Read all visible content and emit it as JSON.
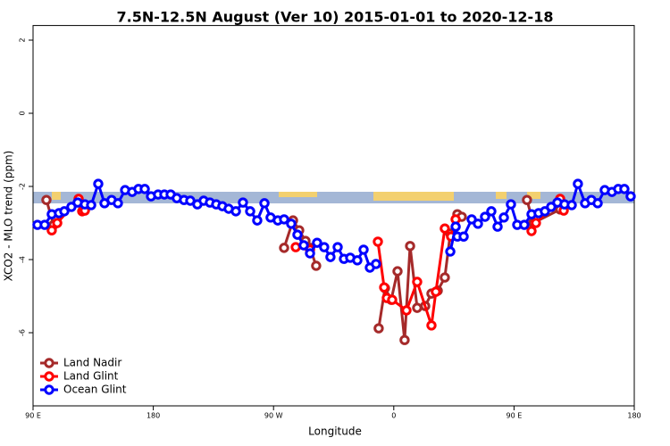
{
  "chart_data": {
    "type": "line",
    "title": "7.5N-12.5N August (Ver 10)   2015-01-01 to 2020-12-18",
    "x_label": "Longitude",
    "y_label": "XCO2 - MLO trend (ppm)",
    "xlim": [
      90,
      540
    ],
    "ylim": [
      -8,
      2.4
    ],
    "xticks": [
      {
        "value": 90,
        "label": "90 E"
      },
      {
        "value": 180,
        "label": "180"
      },
      {
        "value": 270,
        "label": "90 W"
      },
      {
        "value": 360,
        "label": "0"
      },
      {
        "value": 450,
        "label": "90 E"
      },
      {
        "value": 540,
        "label": "180"
      }
    ],
    "yticks": [
      -6,
      -4,
      -2,
      0,
      2
    ],
    "legend": "bottom-left",
    "series": [
      {
        "name": "Land Nadir",
        "color": "#a52a2a",
        "x": [
          100.0,
          105.4,
          null,
          277.9,
          284.6,
          289.2,
          293.9,
          297.3,
          301.9,
          null,
          348.7,
          353.4,
          358.1,
          362.8,
          368.1,
          372.2,
          377.5,
          383.5,
          388.2,
          392.9,
          398.2,
          402.3,
          407.6,
          410.9,
          null,
          459.7,
          464.4,
          484.5
        ],
        "values": [
          -2.37,
          -3.05,
          null,
          -3.68,
          -2.93,
          -3.2,
          -3.49,
          -3.68,
          -4.17,
          null,
          -5.88,
          -4.78,
          -5.1,
          -4.32,
          -6.2,
          -3.63,
          -5.32,
          -5.27,
          -4.93,
          -4.85,
          -4.49,
          -3.29,
          -2.76,
          -2.83,
          null,
          -2.37,
          -3.0,
          -2.63
        ]
      },
      {
        "name": "Land Glint",
        "color": "#ff0000",
        "x": [
          104.0,
          108.1,
          124.1,
          126.8,
          128.8,
          null,
          286.6,
          297.3,
          null,
          348.1,
          352.8,
          354.8,
          358.8,
          369.5,
          377.5,
          388.2,
          391.5,
          398.2,
          402.9,
          406.3,
          null,
          463.1,
          466.4,
          484.5,
          487.2
        ],
        "values": [
          -3.2,
          -3.0,
          -2.34,
          -2.68,
          -2.66,
          null,
          -3.66,
          -3.73,
          null,
          -3.51,
          -4.76,
          -5.05,
          -5.1,
          -5.39,
          -4.61,
          -5.8,
          -4.88,
          -3.15,
          -3.37,
          -2.9,
          null,
          -3.22,
          -3.0,
          -2.34,
          -2.66
        ]
      },
      {
        "name": "Ocean Glint",
        "color": "#0000ff",
        "x": [
          93.3,
          98.7,
          104.0,
          109.4,
          113.4,
          118.7,
          123.4,
          128.8,
          133.5,
          138.8,
          143.5,
          148.8,
          153.5,
          158.9,
          164.2,
          168.9,
          173.6,
          178.3,
          183.6,
          188.3,
          193.0,
          197.6,
          203.0,
          207.7,
          213.0,
          217.7,
          222.4,
          227.1,
          231.7,
          236.4,
          241.8,
          247.1,
          252.5,
          257.8,
          263.2,
          267.8,
          273.2,
          277.9,
          283.2,
          287.9,
          292.6,
          297.3,
          302.6,
          307.9,
          312.6,
          318.0,
          322.7,
          327.4,
          332.7,
          337.4,
          342.1,
          346.7,
          null,
          402.3,
          406.3,
          407.6,
          412.3,
          418.3,
          423.0,
          428.3,
          433.0,
          437.7,
          442.4,
          447.7,
          452.4,
          457.7,
          463.1,
          468.4,
          473.1,
          477.8,
          482.5,
          487.8,
          493.2,
          497.8,
          503.2,
          507.9,
          512.6,
          517.9,
          523.3,
          528.0,
          532.6,
          537.3
        ],
        "values": [
          -3.05,
          -3.05,
          -2.76,
          -2.73,
          -2.68,
          -2.56,
          -2.44,
          -2.49,
          -2.51,
          -1.93,
          -2.46,
          -2.37,
          -2.46,
          -2.1,
          -2.15,
          -2.07,
          -2.07,
          -2.27,
          -2.22,
          -2.22,
          -2.22,
          -2.32,
          -2.37,
          -2.39,
          -2.49,
          -2.39,
          -2.44,
          -2.49,
          -2.54,
          -2.61,
          -2.68,
          -2.44,
          -2.68,
          -2.93,
          -2.46,
          -2.85,
          -2.93,
          -2.9,
          -3.02,
          -3.32,
          -3.61,
          -3.83,
          -3.54,
          -3.66,
          -3.93,
          -3.66,
          -3.98,
          -3.95,
          -4.02,
          -3.73,
          -4.22,
          -4.12,
          null,
          -3.78,
          -3.1,
          -3.37,
          -3.37,
          -2.9,
          -3.02,
          -2.83,
          -2.68,
          -3.1,
          -2.85,
          -2.49,
          -3.05,
          -3.05,
          -2.76,
          -2.73,
          -2.68,
          -2.56,
          -2.44,
          -2.49,
          -2.51,
          -1.93,
          -2.46,
          -2.37,
          -2.46,
          -2.1,
          -2.15,
          -2.07,
          -2.07,
          -2.27
        ]
      }
    ]
  }
}
